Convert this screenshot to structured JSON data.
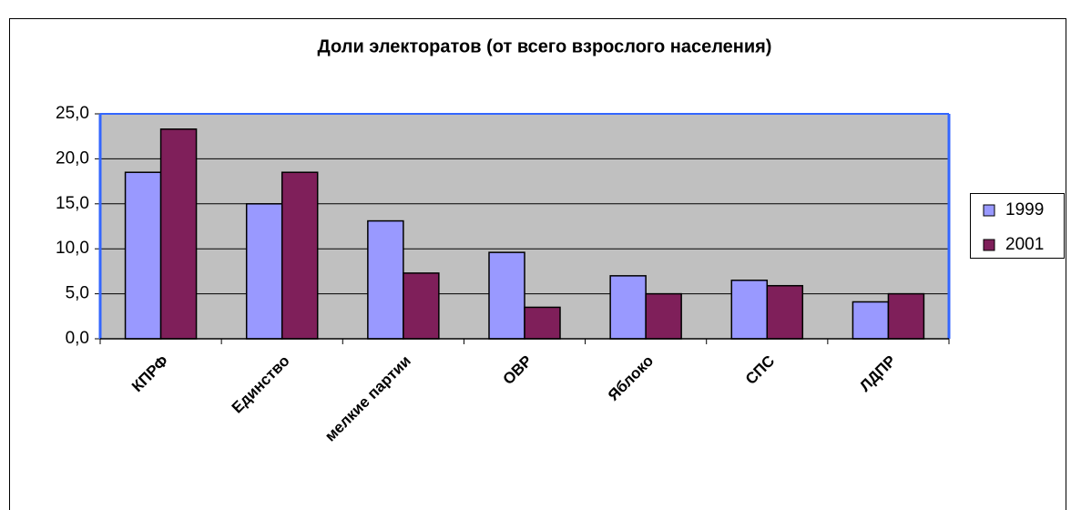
{
  "chart_data": {
    "type": "bar",
    "title": "Доли электоратов (от всего взрослого населения)",
    "categories": [
      "КПРФ",
      "Единство",
      "мелкие партии",
      "ОВР",
      "Яблоко",
      "СПС",
      "ЛДПР"
    ],
    "series": [
      {
        "name": "1999",
        "color": "#9999ff",
        "values": [
          18.5,
          15.0,
          13.1,
          9.6,
          7.0,
          6.5,
          4.1
        ]
      },
      {
        "name": "2001",
        "color": "#7f1f5a",
        "values": [
          23.3,
          18.5,
          7.3,
          3.5,
          5.0,
          5.9,
          5.0
        ]
      }
    ],
    "ylim": [
      0,
      25
    ],
    "yticks": [
      {
        "value": 0,
        "label": "0,0"
      },
      {
        "value": 5,
        "label": "5,0"
      },
      {
        "value": 10,
        "label": "10,0"
      },
      {
        "value": 15,
        "label": "15,0"
      },
      {
        "value": 20,
        "label": "20,0"
      },
      {
        "value": 25,
        "label": "25,0"
      }
    ],
    "grid": true,
    "legend": "right"
  }
}
